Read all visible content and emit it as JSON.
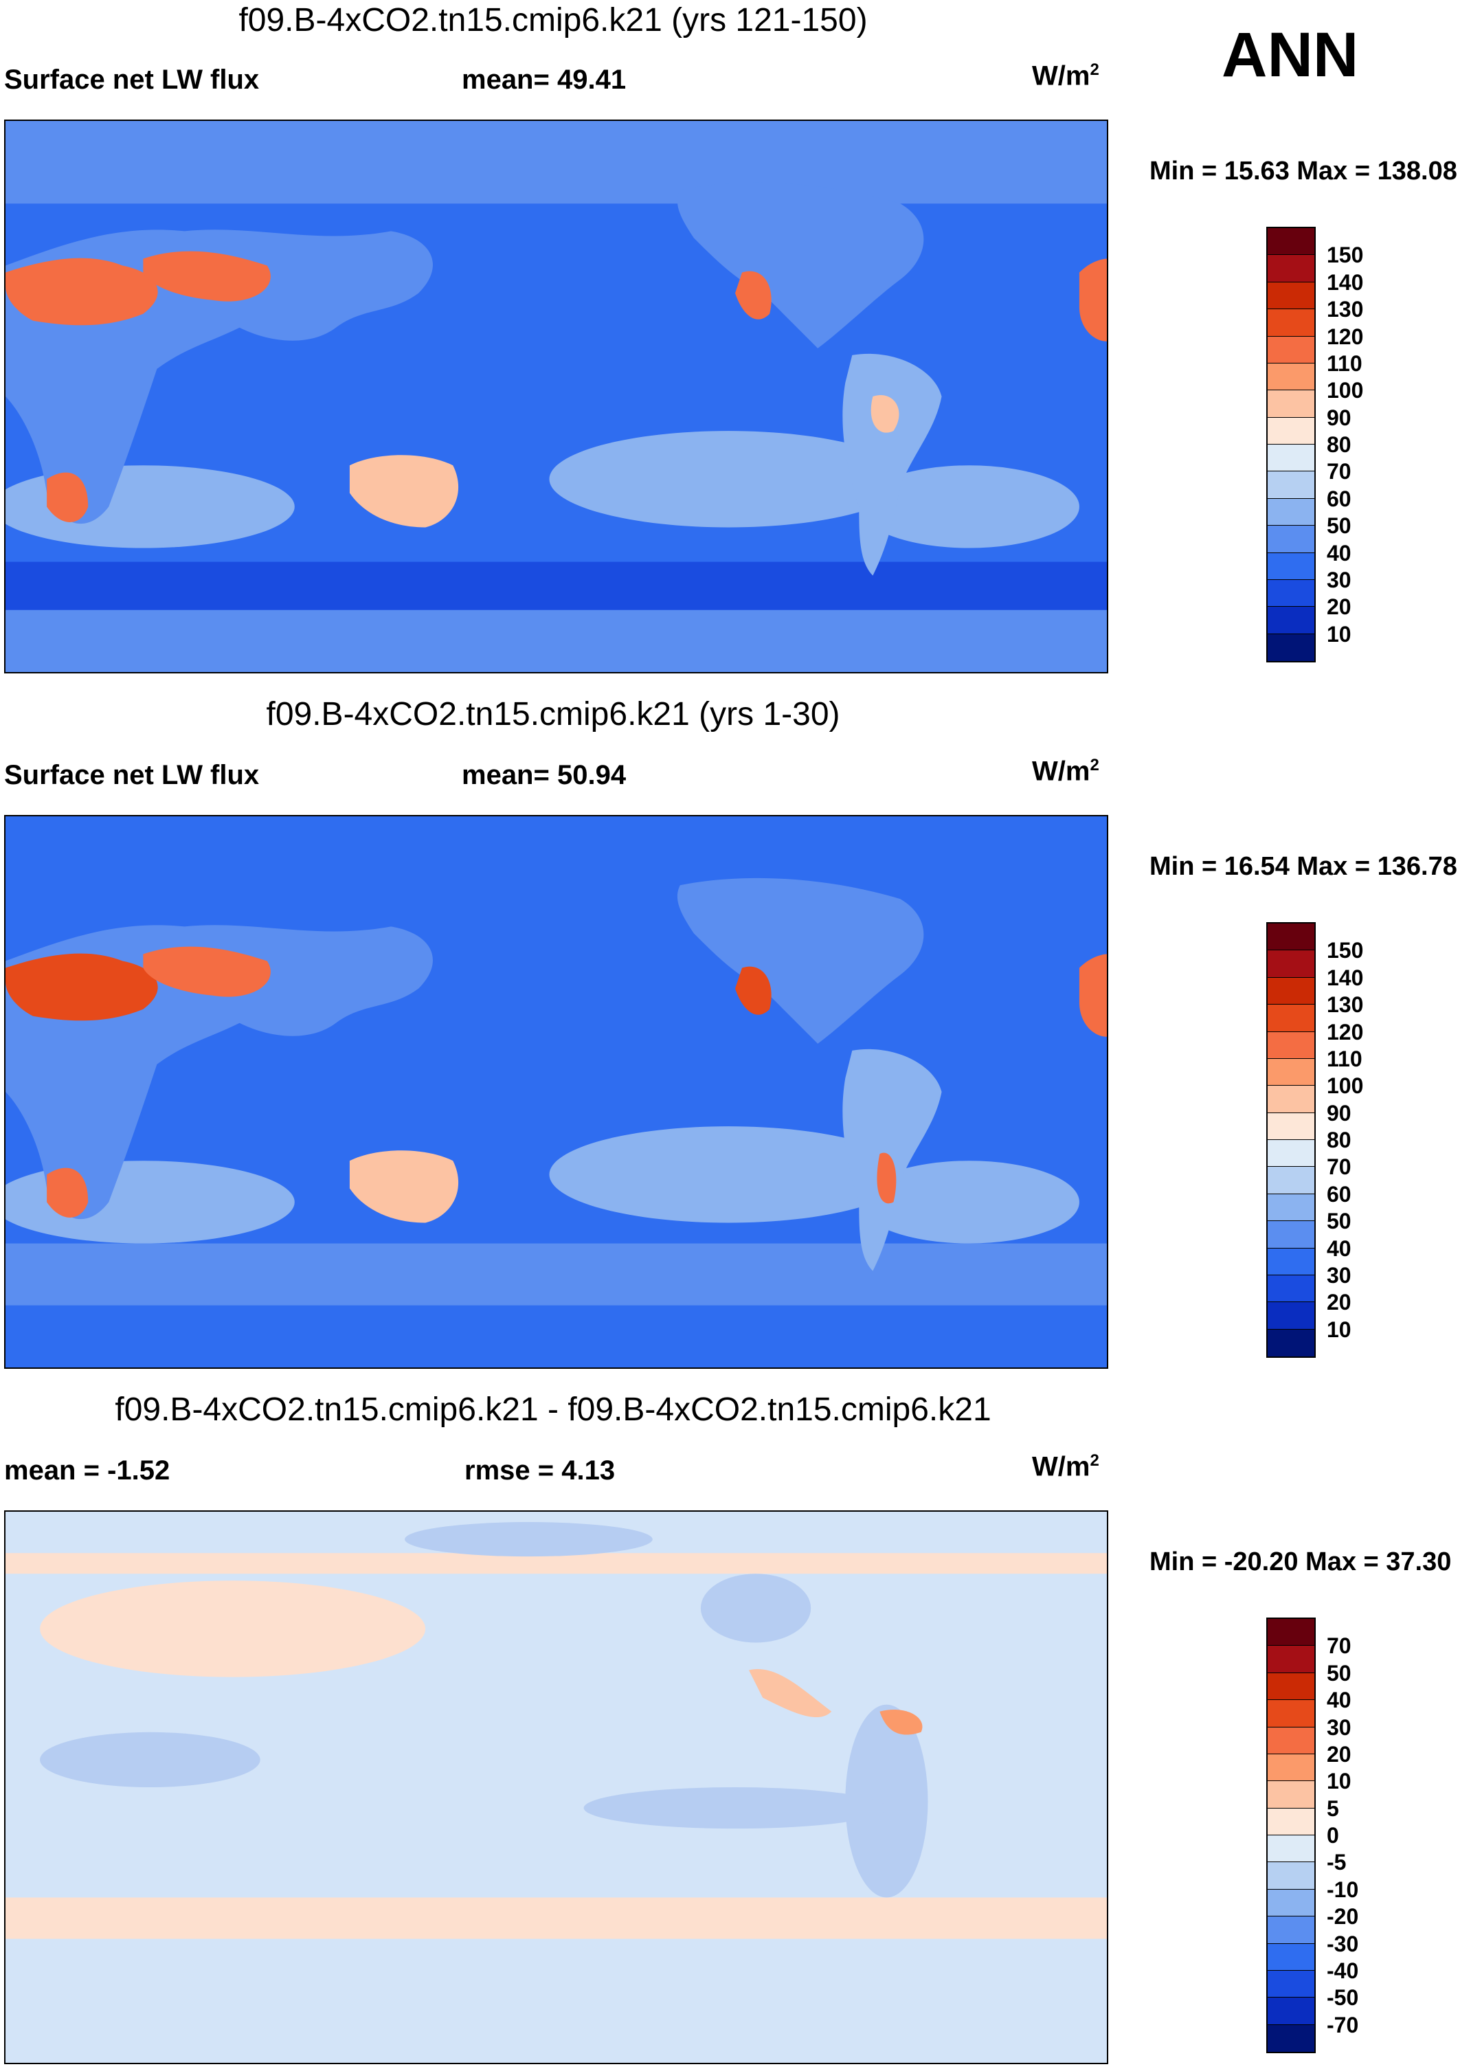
{
  "season": "ANN",
  "units_base": "W/m",
  "units_sup": "2",
  "panels": [
    {
      "title": "f09.B-4xCO2.tn15.cmip6.k21 (yrs 121-150)",
      "left_label": "Surface net LW flux",
      "center_label": "mean=  49.41",
      "minmax": "Min =  15.63 Max = 138.08",
      "levels": [
        "150",
        "140",
        "130",
        "120",
        "110",
        "100",
        "90",
        "80",
        "70",
        "60",
        "50",
        "40",
        "30",
        "20",
        "10"
      ],
      "colors": [
        "#67000d",
        "#a50f15",
        "#cb2a05",
        "#e64a1a",
        "#f46d43",
        "#fb9a6a",
        "#fcc3a3",
        "#fde7d8",
        "#deebf7",
        "#b6d0f2",
        "#8bb3f0",
        "#5b8ef0",
        "#2f6df0",
        "#1a4ce0",
        "#0a2dc0",
        "#001477"
      ]
    },
    {
      "title": "f09.B-4xCO2.tn15.cmip6.k21 (yrs 1-30)",
      "left_label": "Surface net LW flux",
      "center_label": "mean=  50.94",
      "minmax": "Min =  16.54 Max = 136.78",
      "levels": [
        "150",
        "140",
        "130",
        "120",
        "110",
        "100",
        "90",
        "80",
        "70",
        "60",
        "50",
        "40",
        "30",
        "20",
        "10"
      ],
      "colors": [
        "#67000d",
        "#a50f15",
        "#cb2a05",
        "#e64a1a",
        "#f46d43",
        "#fb9a6a",
        "#fcc3a3",
        "#fde7d8",
        "#deebf7",
        "#b6d0f2",
        "#8bb3f0",
        "#5b8ef0",
        "#2f6df0",
        "#1a4ce0",
        "#0a2dc0",
        "#001477"
      ]
    },
    {
      "title": "f09.B-4xCO2.tn15.cmip6.k21 - f09.B-4xCO2.tn15.cmip6.k21",
      "left_label": "mean =  -1.52",
      "center_label": "rmse =   4.13",
      "minmax": "Min = -20.20 Max =  37.30",
      "levels": [
        "70",
        "50",
        "40",
        "30",
        "20",
        "10",
        "5",
        "0",
        "-5",
        "-10",
        "-20",
        "-30",
        "-40",
        "-50",
        "-70"
      ],
      "colors": [
        "#67000d",
        "#a50f15",
        "#cb2a05",
        "#e64a1a",
        "#f46d43",
        "#fb9a6a",
        "#fcc3a3",
        "#fde7d8",
        "#deebf7",
        "#b6d0f2",
        "#8bb3f0",
        "#5b8ef0",
        "#2f6df0",
        "#1a4ce0",
        "#0a2dc0",
        "#001477"
      ]
    }
  ],
  "map_colors": {
    "ocean_mid": "#2f6df0",
    "ocean_light": "#5b8ef0",
    "ocean_pale": "#8bb3f0",
    "ocean_dark": "#1a4ce0",
    "land_warm": "#f46d43",
    "land_hot": "#e64a1a",
    "land_light": "#fcc3a3",
    "diff_base": "#d3e4f8",
    "diff_warm": "#fde0cf",
    "diff_blue": "#b6cdf2"
  }
}
